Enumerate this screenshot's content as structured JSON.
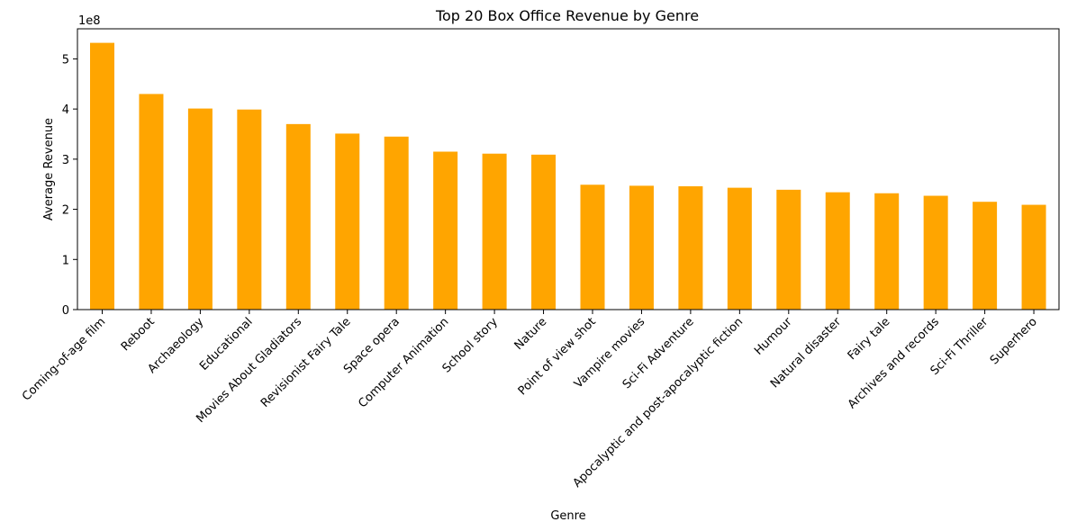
{
  "chart_data": {
    "type": "bar",
    "title": "Top 20 Box Office Revenue by Genre",
    "xlabel": "Genre",
    "ylabel": "Average Revenue",
    "offset_label": "1e8",
    "bar_color": "#ffa500",
    "ylim": [
      0,
      560000000
    ],
    "yticks": [
      0,
      100000000,
      200000000,
      300000000,
      400000000,
      500000000
    ],
    "ytick_labels": [
      "0",
      "1",
      "2",
      "3",
      "4",
      "5"
    ],
    "grid": false,
    "categories": [
      "Coming-of-age film",
      "Reboot",
      "Archaeology",
      "Educational",
      "Movies About Gladiators",
      "Revisionist Fairy Tale",
      "Space opera",
      "Computer Animation",
      "School story",
      "Nature",
      "Point of view shot",
      "Vampire movies",
      "Sci-Fi Adventure",
      "Apocalyptic and post-apocalyptic fiction",
      "Humour",
      "Natural disaster",
      "Fairy tale",
      "Archives and records",
      "Sci-Fi Thriller",
      "Superhero"
    ],
    "values": [
      532000000,
      430000000,
      401000000,
      399000000,
      370000000,
      351000000,
      345000000,
      315000000,
      311000000,
      309000000,
      249000000,
      247000000,
      246000000,
      243000000,
      239000000,
      234000000,
      232000000,
      227000000,
      215000000,
      209000000
    ]
  }
}
